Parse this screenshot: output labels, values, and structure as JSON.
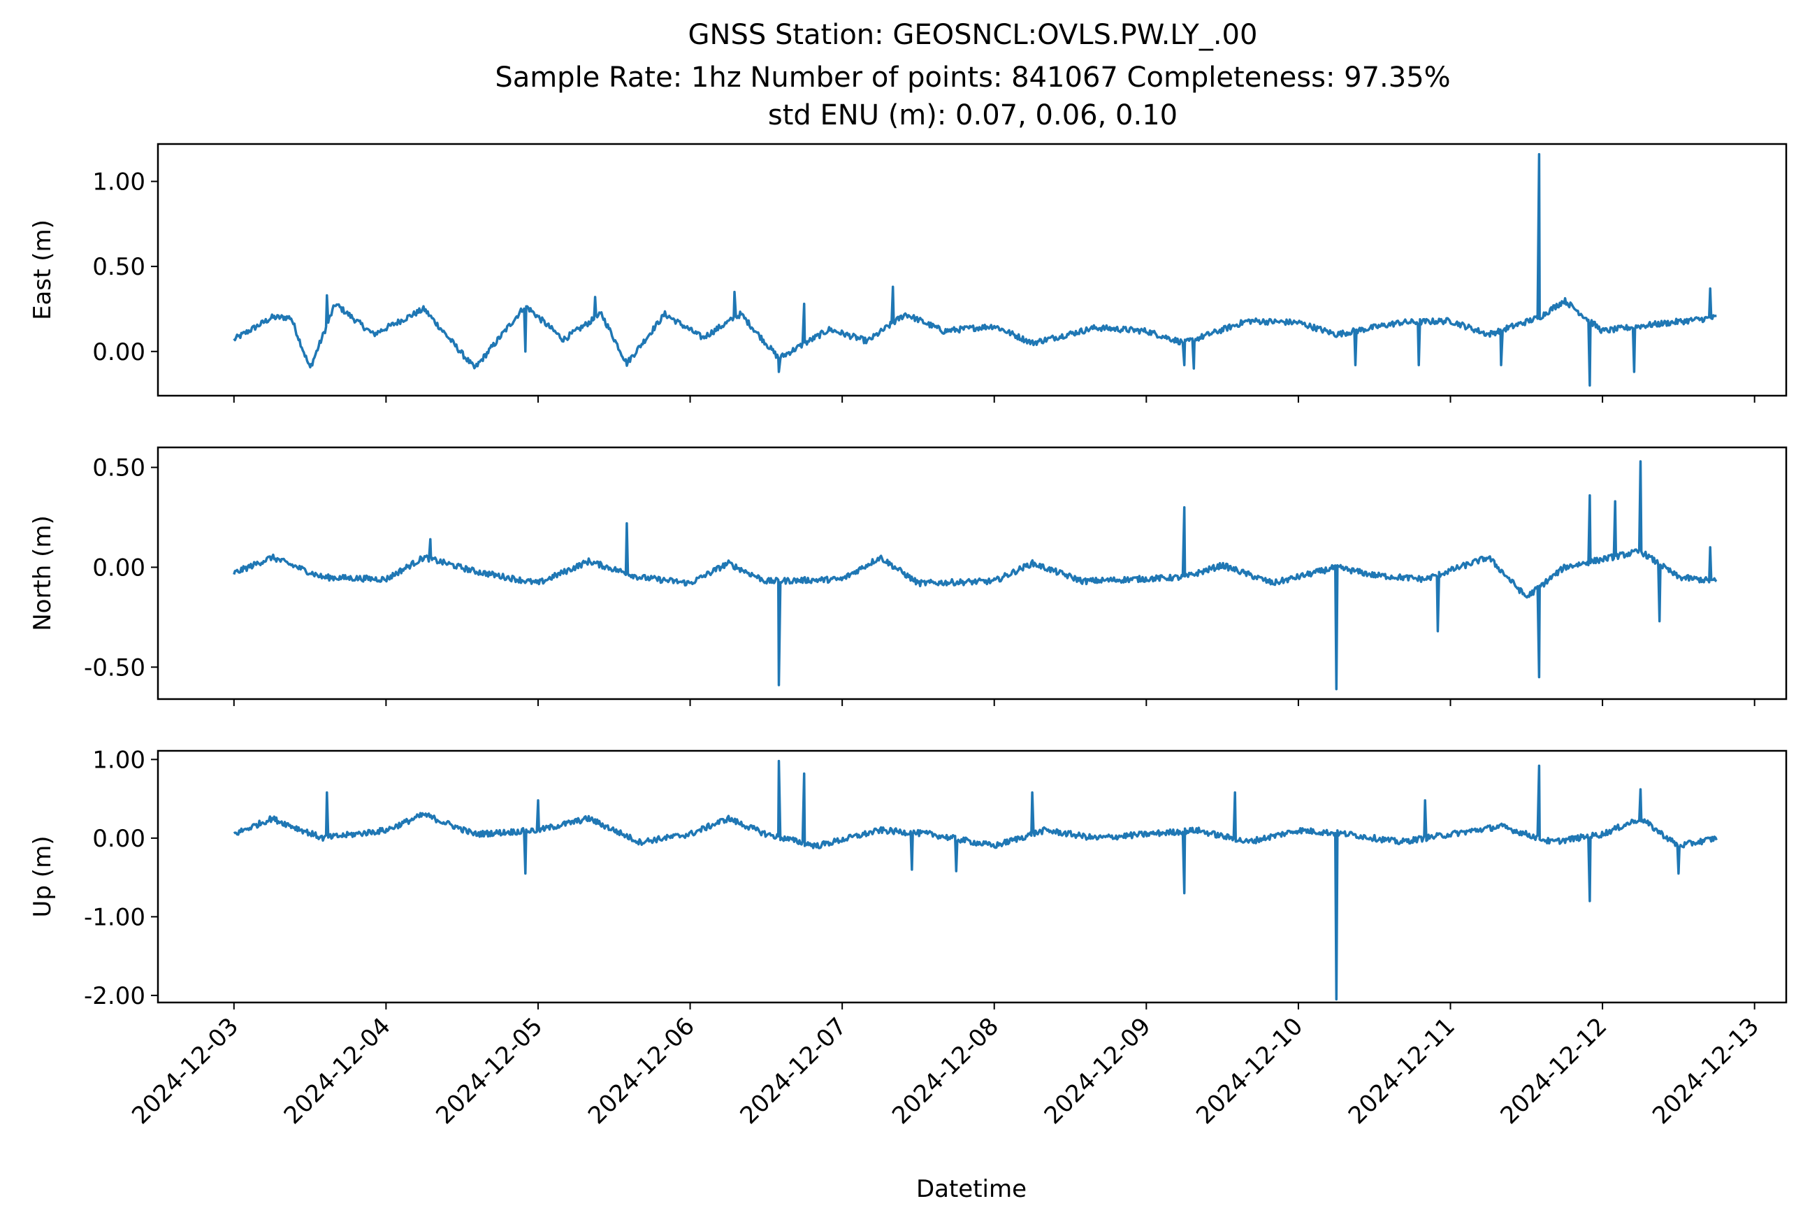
{
  "figure": {
    "title_lines": [
      "GNSS Station: GEOSNCL:OVLS.PW.LY_.00",
      "Sample Rate: 1hz   Number of points: 841067    Completeness:  97.35%",
      "std ENU (m):  0.07, 0.06, 0.10"
    ],
    "xlabel": "Datetime"
  },
  "chart_data": [
    {
      "type": "line",
      "ylabel": "East (m)",
      "xlim": [
        "2024-12-02T12:00",
        "2024-12-13T05:00"
      ],
      "ylim": [
        -0.26,
        1.22
      ],
      "x_ticks": [
        "2024-12-03",
        "2024-12-04",
        "2024-12-05",
        "2024-12-06",
        "2024-12-07",
        "2024-12-08",
        "2024-12-09",
        "2024-12-10",
        "2024-12-11",
        "2024-12-12",
        "2024-12-13"
      ],
      "y_ticks": [
        0.0,
        0.5,
        1.0
      ],
      "y_tick_labels": [
        "0.00",
        "0.50",
        "1.00"
      ],
      "x_range": [
        "2024-12-03T00:00",
        "2024-12-12T18:00"
      ],
      "baseline": [
        [
          "2024-12-03T00:00",
          0.07
        ],
        [
          "2024-12-03T06:00",
          0.2
        ],
        [
          "2024-12-03T09:00",
          0.2
        ],
        [
          "2024-12-03T12:00",
          -0.1
        ],
        [
          "2024-12-03T16:00",
          0.28
        ],
        [
          "2024-12-03T22:00",
          0.1
        ],
        [
          "2024-12-04T06:00",
          0.25
        ],
        [
          "2024-12-04T14:00",
          -0.1
        ],
        [
          "2024-12-04T22:00",
          0.27
        ],
        [
          "2024-12-05T04:00",
          0.07
        ],
        [
          "2024-12-05T10:00",
          0.22
        ],
        [
          "2024-12-05T14:00",
          -0.07
        ],
        [
          "2024-12-05T20:00",
          0.22
        ],
        [
          "2024-12-06T02:00",
          0.08
        ],
        [
          "2024-12-06T08:00",
          0.22
        ],
        [
          "2024-12-06T14:00",
          -0.04
        ],
        [
          "2024-12-06T22:00",
          0.13
        ],
        [
          "2024-12-07T04:00",
          0.06
        ],
        [
          "2024-12-07T10:00",
          0.22
        ],
        [
          "2024-12-07T16:00",
          0.12
        ],
        [
          "2024-12-08T00:00",
          0.15
        ],
        [
          "2024-12-08T06:00",
          0.05
        ],
        [
          "2024-12-08T16:00",
          0.14
        ],
        [
          "2024-12-09T00:00",
          0.12
        ],
        [
          "2024-12-09T06:00",
          0.05
        ],
        [
          "2024-12-09T16:00",
          0.18
        ],
        [
          "2024-12-10T00:00",
          0.17
        ],
        [
          "2024-12-10T06:00",
          0.1
        ],
        [
          "2024-12-10T16:00",
          0.17
        ],
        [
          "2024-12-11T00:00",
          0.18
        ],
        [
          "2024-12-11T06:00",
          0.1
        ],
        [
          "2024-12-11T14:00",
          0.2
        ],
        [
          "2024-12-11T18:00",
          0.3
        ],
        [
          "2024-12-12T00:00",
          0.12
        ],
        [
          "2024-12-12T06:00",
          0.15
        ],
        [
          "2024-12-12T18:00",
          0.2
        ]
      ],
      "spikes": [
        [
          "2024-12-03T14:40",
          0.33
        ],
        [
          "2024-12-04T22:00",
          0.0
        ],
        [
          "2024-12-05T09:00",
          0.32
        ],
        [
          "2024-12-06T07:00",
          0.35
        ],
        [
          "2024-12-06T14:00",
          -0.12
        ],
        [
          "2024-12-06T18:00",
          0.28
        ],
        [
          "2024-12-07T08:00",
          0.38
        ],
        [
          "2024-12-09T06:00",
          -0.08
        ],
        [
          "2024-12-09T07:30",
          -0.1
        ],
        [
          "2024-12-10T09:00",
          -0.08
        ],
        [
          "2024-12-10T19:00",
          -0.08
        ],
        [
          "2024-12-11T08:00",
          -0.08
        ],
        [
          "2024-12-11T14:00",
          1.16
        ],
        [
          "2024-12-11T22:00",
          -0.2
        ],
        [
          "2024-12-12T05:00",
          -0.12
        ],
        [
          "2024-12-12T17:00",
          0.37
        ]
      ]
    },
    {
      "type": "line",
      "ylabel": "North (m)",
      "xlim": [
        "2024-12-02T12:00",
        "2024-12-13T05:00"
      ],
      "ylim": [
        -0.66,
        0.6
      ],
      "x_ticks": [
        "2024-12-03",
        "2024-12-04",
        "2024-12-05",
        "2024-12-06",
        "2024-12-07",
        "2024-12-08",
        "2024-12-09",
        "2024-12-10",
        "2024-12-11",
        "2024-12-12",
        "2024-12-13"
      ],
      "y_ticks": [
        -0.5,
        0.0,
        0.5
      ],
      "y_tick_labels": [
        "-0.50",
        "0.00",
        "0.50"
      ],
      "x_range": [
        "2024-12-03T00:00",
        "2024-12-12T18:00"
      ],
      "baseline": [
        [
          "2024-12-03T00:00",
          -0.03
        ],
        [
          "2024-12-03T06:00",
          0.05
        ],
        [
          "2024-12-03T14:00",
          -0.05
        ],
        [
          "2024-12-04T00:00",
          -0.06
        ],
        [
          "2024-12-04T06:00",
          0.05
        ],
        [
          "2024-12-04T14:00",
          -0.02
        ],
        [
          "2024-12-05T00:00",
          -0.08
        ],
        [
          "2024-12-05T08:00",
          0.03
        ],
        [
          "2024-12-05T16:00",
          -0.05
        ],
        [
          "2024-12-06T00:00",
          -0.08
        ],
        [
          "2024-12-06T06:00",
          0.02
        ],
        [
          "2024-12-06T12:00",
          -0.07
        ],
        [
          "2024-12-07T00:00",
          -0.06
        ],
        [
          "2024-12-07T06:00",
          0.05
        ],
        [
          "2024-12-07T12:00",
          -0.08
        ],
        [
          "2024-12-08T00:00",
          -0.07
        ],
        [
          "2024-12-08T06:00",
          0.02
        ],
        [
          "2024-12-08T14:00",
          -0.07
        ],
        [
          "2024-12-09T06:00",
          -0.05
        ],
        [
          "2024-12-09T12:00",
          0.01
        ],
        [
          "2024-12-09T20:00",
          -0.08
        ],
        [
          "2024-12-10T06:00",
          0.0
        ],
        [
          "2024-12-10T12:00",
          -0.04
        ],
        [
          "2024-12-10T20:00",
          -0.06
        ],
        [
          "2024-12-11T06:00",
          0.05
        ],
        [
          "2024-12-11T12:00",
          -0.15
        ],
        [
          "2024-12-11T18:00",
          0.0
        ],
        [
          "2024-12-12T06:00",
          0.08
        ],
        [
          "2024-12-12T12:00",
          -0.05
        ],
        [
          "2024-12-12T18:00",
          -0.07
        ]
      ],
      "spikes": [
        [
          "2024-12-04T07:00",
          0.14
        ],
        [
          "2024-12-05T14:00",
          0.22
        ],
        [
          "2024-12-06T14:00",
          -0.59
        ],
        [
          "2024-12-09T06:00",
          0.3
        ],
        [
          "2024-12-10T06:00",
          -0.61
        ],
        [
          "2024-12-10T22:00",
          -0.32
        ],
        [
          "2024-12-11T14:00",
          -0.55
        ],
        [
          "2024-12-11T22:00",
          0.36
        ],
        [
          "2024-12-12T02:00",
          0.33
        ],
        [
          "2024-12-12T06:00",
          0.53
        ],
        [
          "2024-12-12T09:00",
          -0.27
        ],
        [
          "2024-12-12T17:00",
          0.1
        ]
      ]
    },
    {
      "type": "line",
      "ylabel": "Up (m)",
      "xlim": [
        "2024-12-02T12:00",
        "2024-12-13T05:00"
      ],
      "ylim": [
        -2.09,
        1.11
      ],
      "x_ticks": [
        "2024-12-03",
        "2024-12-04",
        "2024-12-05",
        "2024-12-06",
        "2024-12-07",
        "2024-12-08",
        "2024-12-09",
        "2024-12-10",
        "2024-12-11",
        "2024-12-12",
        "2024-12-13"
      ],
      "y_ticks": [
        -2.0,
        -1.0,
        0.0,
        1.0
      ],
      "y_tick_labels": [
        "-2.00",
        "-1.00",
        "0.00",
        "1.00"
      ],
      "x_range": [
        "2024-12-03T00:00",
        "2024-12-12T18:00"
      ],
      "baseline": [
        [
          "2024-12-03T00:00",
          0.05
        ],
        [
          "2024-12-03T06:00",
          0.25
        ],
        [
          "2024-12-03T14:00",
          0.0
        ],
        [
          "2024-12-04T00:00",
          0.1
        ],
        [
          "2024-12-04T06:00",
          0.3
        ],
        [
          "2024-12-04T14:00",
          0.05
        ],
        [
          "2024-12-05T00:00",
          0.1
        ],
        [
          "2024-12-05T08:00",
          0.25
        ],
        [
          "2024-12-05T16:00",
          -0.05
        ],
        [
          "2024-12-06T00:00",
          0.05
        ],
        [
          "2024-12-06T06:00",
          0.25
        ],
        [
          "2024-12-06T12:00",
          0.05
        ],
        [
          "2024-12-06T20:00",
          -0.1
        ],
        [
          "2024-12-07T06:00",
          0.1
        ],
        [
          "2024-12-07T14:00",
          0.05
        ],
        [
          "2024-12-08T00:00",
          -0.1
        ],
        [
          "2024-12-08T08:00",
          0.1
        ],
        [
          "2024-12-08T16:00",
          0.0
        ],
        [
          "2024-12-09T00:00",
          0.05
        ],
        [
          "2024-12-09T08:00",
          0.1
        ],
        [
          "2024-12-09T16:00",
          -0.05
        ],
        [
          "2024-12-10T00:00",
          0.1
        ],
        [
          "2024-12-10T08:00",
          0.05
        ],
        [
          "2024-12-10T16:00",
          -0.05
        ],
        [
          "2024-12-11T00:00",
          0.05
        ],
        [
          "2024-12-11T08:00",
          0.15
        ],
        [
          "2024-12-11T16:00",
          -0.05
        ],
        [
          "2024-12-12T00:00",
          0.05
        ],
        [
          "2024-12-12T06:00",
          0.25
        ],
        [
          "2024-12-12T12:00",
          -0.1
        ],
        [
          "2024-12-12T18:00",
          0.0
        ]
      ],
      "spikes": [
        [
          "2024-12-03T14:40",
          0.58
        ],
        [
          "2024-12-04T22:00",
          -0.45
        ],
        [
          "2024-12-05T00:00",
          0.48
        ],
        [
          "2024-12-06T18:00",
          0.82
        ],
        [
          "2024-12-06T14:00",
          0.98
        ],
        [
          "2024-12-07T11:00",
          -0.4
        ],
        [
          "2024-12-07T18:00",
          -0.42
        ],
        [
          "2024-12-08T06:00",
          0.58
        ],
        [
          "2024-12-09T06:00",
          -0.7
        ],
        [
          "2024-12-09T14:00",
          0.58
        ],
        [
          "2024-12-10T06:00",
          -2.05
        ],
        [
          "2024-12-10T20:00",
          0.48
        ],
        [
          "2024-12-11T14:00",
          0.92
        ],
        [
          "2024-12-11T22:00",
          -0.8
        ],
        [
          "2024-12-12T06:00",
          0.62
        ],
        [
          "2024-12-12T12:00",
          -0.45
        ]
      ]
    }
  ]
}
